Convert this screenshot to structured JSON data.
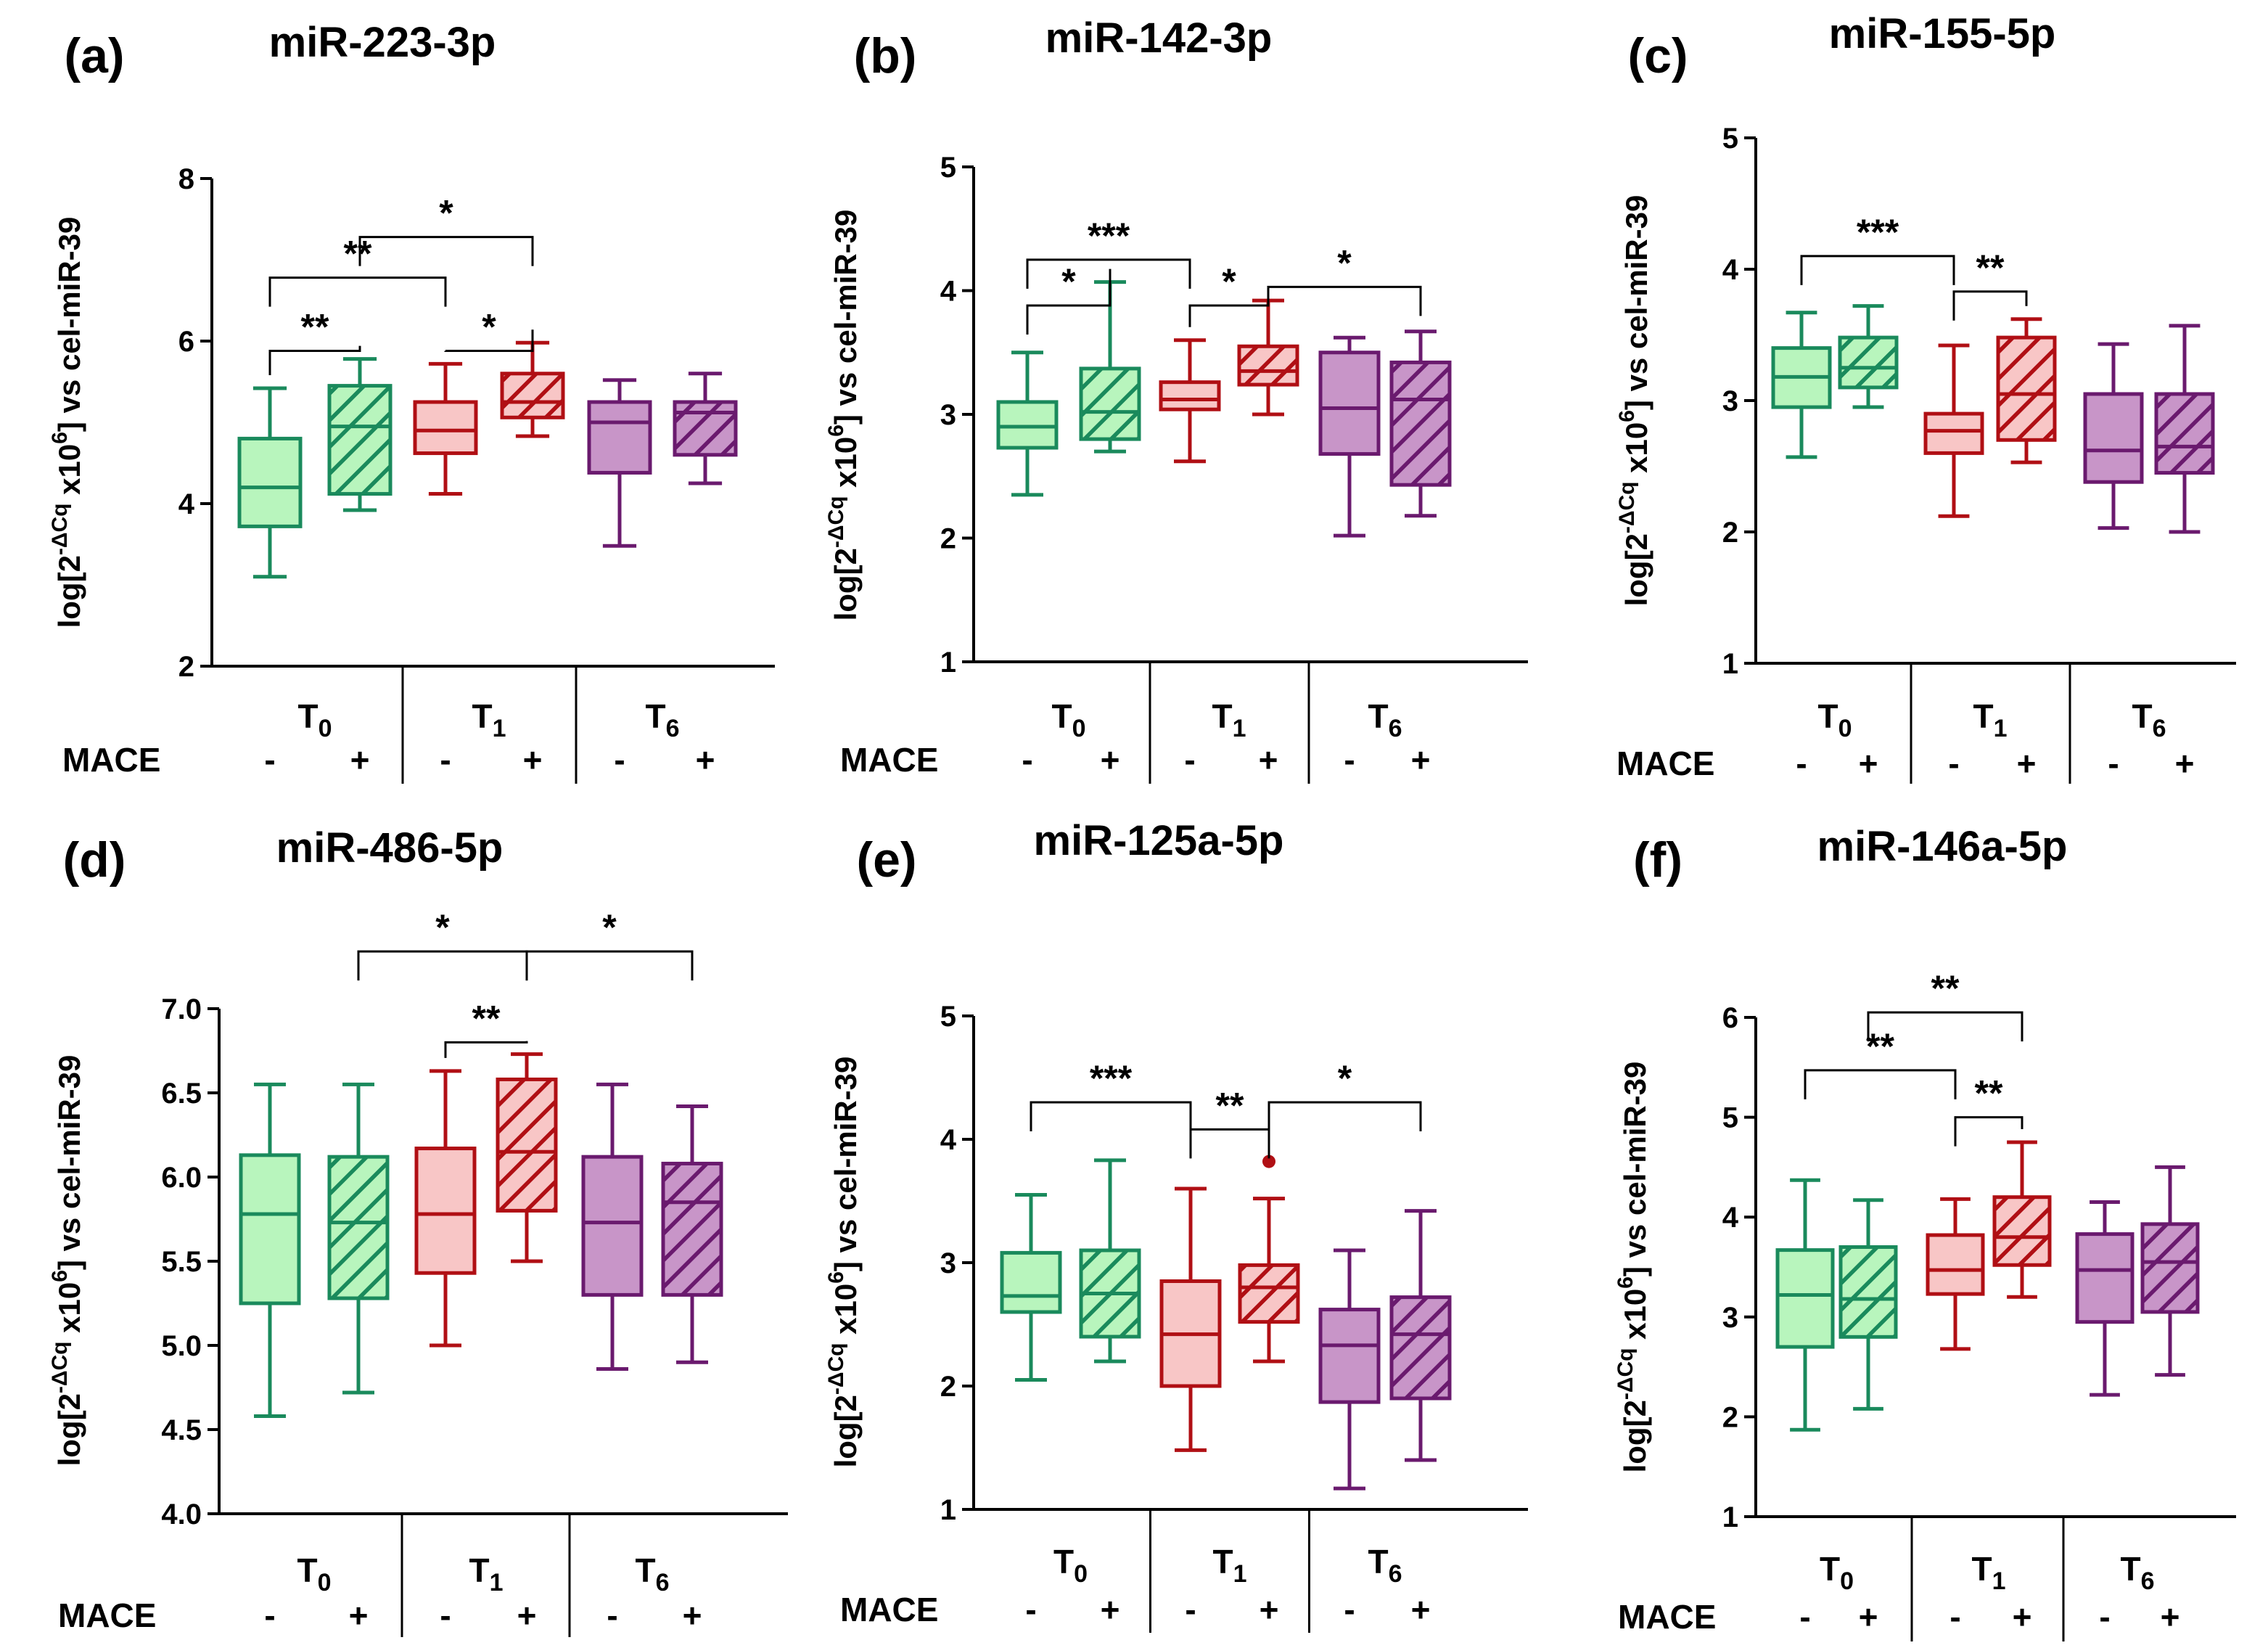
{
  "figure": {
    "group_labels": [
      "T0",
      "T1",
      "T6"
    ],
    "mace_label": "MACE",
    "mace_signs": [
      "-",
      "+",
      "-",
      "+",
      "-",
      "+"
    ],
    "y_label_prefix": "log[2",
    "y_label_exp": "-ΔCq",
    "y_label_mid": " x10",
    "y_label_exp2": "6",
    "y_label_suffix": "] vs cel-miR-39",
    "colors": {
      "green_fill": "#b8f5bd",
      "green_line": "#1a8a5c",
      "red_fill": "#f8c6c6",
      "red_line": "#b00f14",
      "purple_fill": "#c895c8",
      "purple_line": "#6a1a6e"
    }
  },
  "chart_data": [
    {
      "type": "box",
      "panel": "(a)",
      "title": "miR-223-3p",
      "ylim": [
        2,
        8
      ],
      "yticks": [
        "2",
        "4",
        "6",
        "8"
      ],
      "categories": [
        "T0 MACE-",
        "T0 MACE+",
        "T1 MACE-",
        "T1 MACE+",
        "T6 MACE-",
        "T6 MACE+"
      ],
      "boxes": [
        {
          "min": 3.1,
          "q1": 3.72,
          "median": 4.2,
          "q3": 4.8,
          "max": 5.42
        },
        {
          "min": 3.92,
          "q1": 4.12,
          "median": 4.95,
          "q3": 5.45,
          "max": 5.78
        },
        {
          "min": 4.12,
          "q1": 4.62,
          "median": 4.9,
          "q3": 5.25,
          "max": 5.72
        },
        {
          "min": 4.83,
          "q1": 5.06,
          "median": 5.25,
          "q3": 5.6,
          "max": 5.98
        },
        {
          "min": 3.48,
          "q1": 4.38,
          "median": 5.0,
          "q3": 5.25,
          "max": 5.52
        },
        {
          "min": 4.25,
          "q1": 4.6,
          "median": 5.12,
          "q3": 5.25,
          "max": 5.6
        }
      ],
      "outliers": [],
      "significance": [
        {
          "from": 1,
          "to": 3,
          "label": "*",
          "y": 7.28
        },
        {
          "from": 0,
          "to": 2,
          "label": "**",
          "y": 6.78
        },
        {
          "from": 0,
          "to": 1,
          "label": "**",
          "y": 5.88
        },
        {
          "from": 2,
          "to": 3,
          "label": "*",
          "y": 5.88
        }
      ]
    },
    {
      "type": "box",
      "panel": "(b)",
      "title": "miR-142-3p",
      "ylim": [
        1,
        5
      ],
      "yticks": [
        "1",
        "2",
        "3",
        "4",
        "5"
      ],
      "categories": [
        "T0 MACE-",
        "T0 MACE+",
        "T1 MACE-",
        "T1 MACE+",
        "T6 MACE-",
        "T6 MACE+"
      ],
      "boxes": [
        {
          "min": 2.35,
          "q1": 2.73,
          "median": 2.9,
          "q3": 3.1,
          "max": 3.5
        },
        {
          "min": 2.7,
          "q1": 2.8,
          "median": 3.02,
          "q3": 3.37,
          "max": 4.07
        },
        {
          "min": 2.62,
          "q1": 3.04,
          "median": 3.12,
          "q3": 3.26,
          "max": 3.6
        },
        {
          "min": 3.0,
          "q1": 3.24,
          "median": 3.35,
          "q3": 3.55,
          "max": 3.92
        },
        {
          "min": 2.02,
          "q1": 2.68,
          "median": 3.05,
          "q3": 3.5,
          "max": 3.62
        },
        {
          "min": 2.18,
          "q1": 2.43,
          "median": 3.12,
          "q3": 3.42,
          "max": 3.67
        }
      ],
      "outliers": [],
      "significance": [
        {
          "from": 0,
          "to": 2,
          "label": "***",
          "y": 4.25
        },
        {
          "from": 0,
          "to": 1,
          "label": "*",
          "y": 3.88
        },
        {
          "from": 2,
          "to": 3,
          "label": "*",
          "y": 3.88
        },
        {
          "from": 3,
          "to": 5,
          "label": "*",
          "y": 4.03
        }
      ]
    },
    {
      "type": "box",
      "panel": "(c)",
      "title": "miR-155-5p",
      "ylim": [
        1,
        5
      ],
      "yticks": [
        "1",
        "2",
        "3",
        "4",
        "5"
      ],
      "categories": [
        "T0 MACE-",
        "T0 MACE+",
        "T1 MACE-",
        "T1 MACE+",
        "T6 MACE-",
        "T6 MACE+"
      ],
      "boxes": [
        {
          "min": 2.57,
          "q1": 2.95,
          "median": 3.18,
          "q3": 3.4,
          "max": 3.67
        },
        {
          "min": 2.95,
          "q1": 3.1,
          "median": 3.25,
          "q3": 3.48,
          "max": 3.72
        },
        {
          "min": 2.12,
          "q1": 2.6,
          "median": 2.77,
          "q3": 2.9,
          "max": 3.42
        },
        {
          "min": 2.53,
          "q1": 2.7,
          "median": 3.05,
          "q3": 3.48,
          "max": 3.62
        },
        {
          "min": 2.03,
          "q1": 2.38,
          "median": 2.62,
          "q3": 3.05,
          "max": 3.43
        },
        {
          "min": 2.0,
          "q1": 2.45,
          "median": 2.65,
          "q3": 3.05,
          "max": 3.57
        }
      ],
      "outliers": [],
      "significance": [
        {
          "from": 0,
          "to": 2,
          "label": "***",
          "y": 4.1
        },
        {
          "from": 2,
          "to": 3,
          "label": "**",
          "y": 3.83
        }
      ]
    },
    {
      "type": "box",
      "panel": "(d)",
      "title": "miR-486-5p",
      "ylim": [
        4.0,
        7.0
      ],
      "yticks": [
        "4.0",
        "4.5",
        "5.0",
        "5.5",
        "6.0",
        "6.5",
        "7.0"
      ],
      "categories": [
        "T0 MACE-",
        "T0 MACE+",
        "T1 MACE-",
        "T1 MACE+",
        "T6 MACE-",
        "T6 MACE+"
      ],
      "boxes": [
        {
          "min": 4.58,
          "q1": 5.25,
          "median": 5.78,
          "q3": 6.13,
          "max": 6.55
        },
        {
          "min": 4.72,
          "q1": 5.28,
          "median": 5.73,
          "q3": 6.12,
          "max": 6.55
        },
        {
          "min": 5.0,
          "q1": 5.43,
          "median": 5.78,
          "q3": 6.17,
          "max": 6.63
        },
        {
          "min": 5.5,
          "q1": 5.8,
          "median": 6.15,
          "q3": 6.58,
          "max": 6.73
        },
        {
          "min": 4.86,
          "q1": 5.3,
          "median": 5.73,
          "q3": 6.12,
          "max": 6.55
        },
        {
          "min": 4.9,
          "q1": 5.3,
          "median": 5.85,
          "q3": 6.08,
          "max": 6.42
        }
      ],
      "outliers": [],
      "significance": [
        {
          "from": 1,
          "to": 3,
          "label": "*",
          "y": 7.34
        },
        {
          "from": 3,
          "to": 5,
          "label": "*",
          "y": 7.34
        },
        {
          "from": 2,
          "to": 3,
          "label": "**",
          "y": 6.8
        }
      ]
    },
    {
      "type": "box",
      "panel": "(e)",
      "title": "miR-125a-5p",
      "ylim": [
        1,
        5
      ],
      "yticks": [
        "1",
        "2",
        "3",
        "4",
        "5"
      ],
      "categories": [
        "T0 MACE-",
        "T0 MACE+",
        "T1 MACE-",
        "T1 MACE+",
        "T6 MACE-",
        "T6 MACE+"
      ],
      "boxes": [
        {
          "min": 2.05,
          "q1": 2.6,
          "median": 2.73,
          "q3": 3.08,
          "max": 3.55
        },
        {
          "min": 2.2,
          "q1": 2.4,
          "median": 2.75,
          "q3": 3.1,
          "max": 3.83
        },
        {
          "min": 1.48,
          "q1": 2.0,
          "median": 2.42,
          "q3": 2.85,
          "max": 3.6
        },
        {
          "min": 2.2,
          "q1": 2.52,
          "median": 2.8,
          "q3": 2.98,
          "max": 3.52
        },
        {
          "min": 1.17,
          "q1": 1.87,
          "median": 2.33,
          "q3": 2.62,
          "max": 3.1
        },
        {
          "min": 1.4,
          "q1": 1.9,
          "median": 2.42,
          "q3": 2.72,
          "max": 3.42
        }
      ],
      "outliers": [
        {
          "index": 3,
          "value": 3.82
        }
      ],
      "significance": [
        {
          "from": 0,
          "to": 2,
          "label": "***",
          "y": 4.3
        },
        {
          "from": 2,
          "to": 3,
          "label": "**",
          "y": 4.08
        },
        {
          "from": 3,
          "to": 5,
          "label": "*",
          "y": 4.3
        }
      ]
    },
    {
      "type": "box",
      "panel": "(f)",
      "title": "miR-146a-5p",
      "ylim": [
        1,
        6
      ],
      "yticks": [
        "1",
        "2",
        "3",
        "4",
        "5",
        "6"
      ],
      "categories": [
        "T0 MACE-",
        "T0 MACE+",
        "T1 MACE-",
        "T1 MACE+",
        "T6 MACE-",
        "T6 MACE+"
      ],
      "boxes": [
        {
          "min": 1.87,
          "q1": 2.7,
          "median": 3.22,
          "q3": 3.67,
          "max": 4.37
        },
        {
          "min": 2.08,
          "q1": 2.8,
          "median": 3.18,
          "q3": 3.7,
          "max": 4.17
        },
        {
          "min": 2.68,
          "q1": 3.23,
          "median": 3.47,
          "q3": 3.82,
          "max": 4.18
        },
        {
          "min": 3.2,
          "q1": 3.52,
          "median": 3.8,
          "q3": 4.2,
          "max": 4.75
        },
        {
          "min": 2.22,
          "q1": 2.95,
          "median": 3.47,
          "q3": 3.83,
          "max": 4.15
        },
        {
          "min": 2.42,
          "q1": 3.05,
          "median": 3.55,
          "q3": 3.93,
          "max": 4.5
        }
      ],
      "outliers": [],
      "significance": [
        {
          "from": 1,
          "to": 3,
          "label": "**",
          "y": 6.05
        },
        {
          "from": 0,
          "to": 2,
          "label": "**",
          "y": 5.47
        },
        {
          "from": 2,
          "to": 3,
          "label": "**",
          "y": 5.0
        }
      ]
    }
  ]
}
